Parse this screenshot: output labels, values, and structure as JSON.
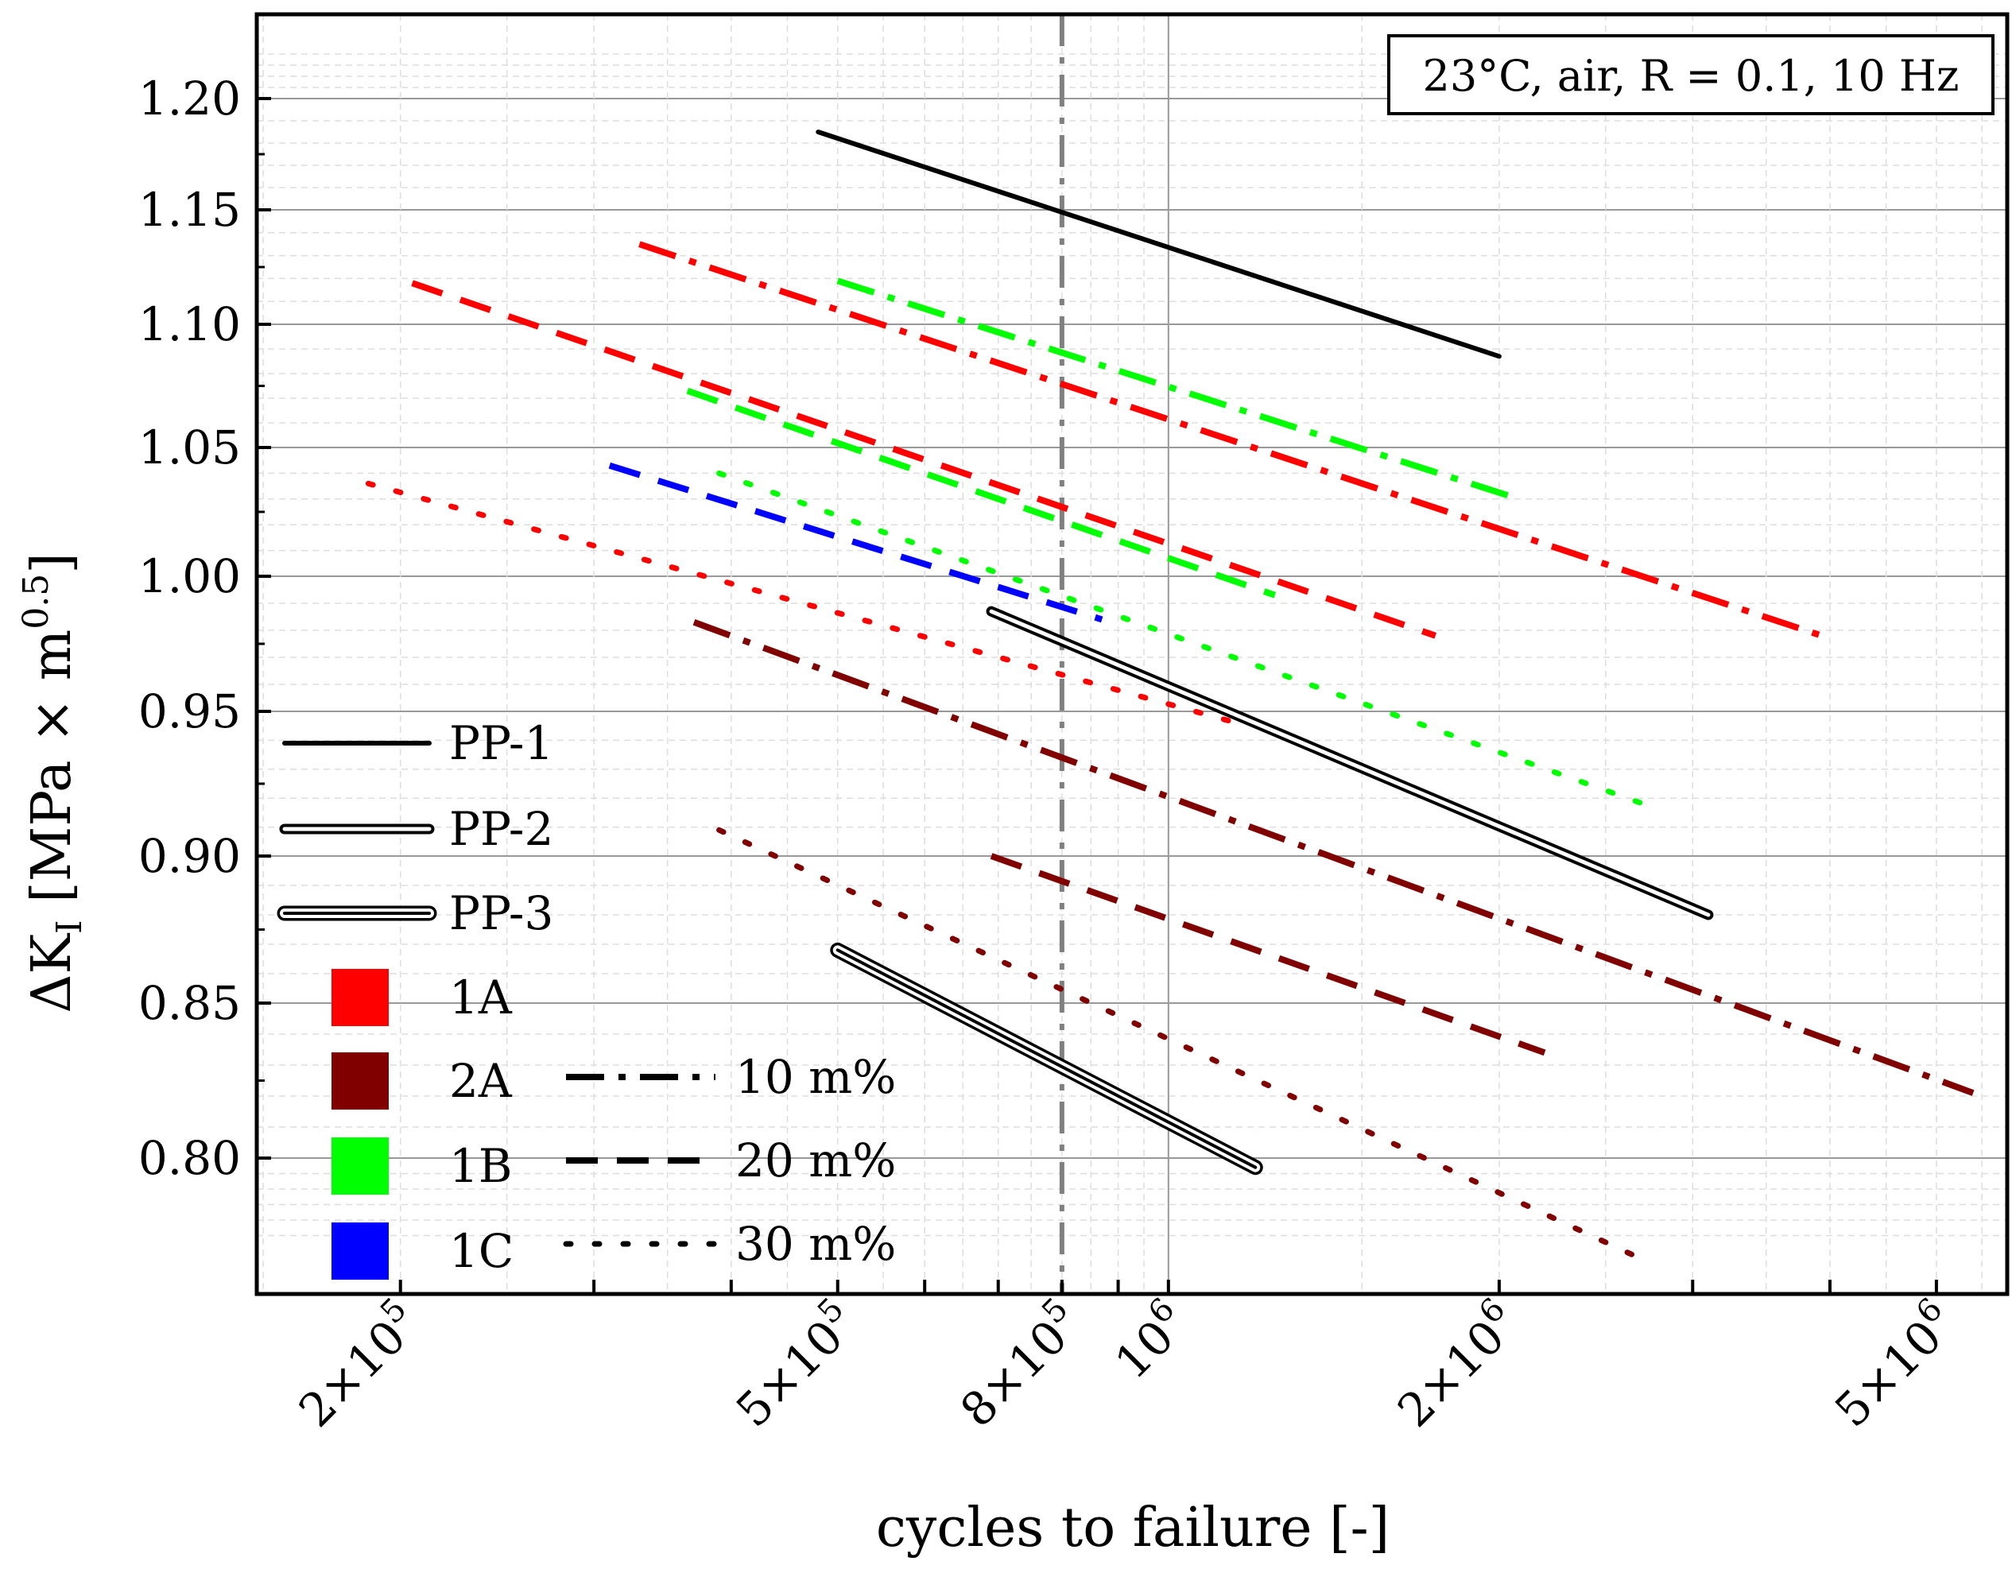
{
  "chart_data": {
    "type": "line",
    "title": "",
    "annotation": "23°C, air, R = 0.1, 10 Hz",
    "xlabel": "cycles to failure [-]",
    "ylabel": {
      "prefix": "ΔK",
      "sub": "I",
      "mid": " [MPa × m",
      "sup": "0.5",
      "suffix": "]"
    },
    "xscale": "log",
    "xlim": [
      148000,
      5800000
    ],
    "ylim": [
      0.772,
      1.225
    ],
    "yscale": "custom-piecewise",
    "y_tick_values": [
      0.8,
      0.85,
      0.9,
      0.95,
      1.0,
      1.05,
      1.1,
      1.15,
      1.2
    ],
    "y_tick_labels": [
      "0.80",
      "0.85",
      "0.90",
      "0.95",
      "1.00",
      "1.05",
      "1.10",
      "1.15",
      "1.20"
    ],
    "x_tick_labels": [
      {
        "value": 200000,
        "mant": "2×10",
        "exp": "5"
      },
      {
        "value": 500000,
        "mant": "5×10",
        "exp": "5"
      },
      {
        "value": 800000,
        "mant": "8×10",
        "exp": "5"
      },
      {
        "value": 1000000,
        "mant": "10",
        "exp": "6"
      },
      {
        "value": 2000000,
        "mant": "2×10",
        "exp": "6"
      },
      {
        "value": 5000000,
        "mant": "5×10",
        "exp": "6"
      }
    ],
    "grid": true,
    "reference_line": {
      "x": 800000,
      "style": "dash-dot",
      "color": "#808080"
    },
    "colors": {
      "1A": "#ff0000",
      "2A": "#800000",
      "1B": "#00ff00",
      "1C": "#0000ff",
      "PP": "#000000"
    },
    "series": [
      {
        "name": "PP-1",
        "material": "PP",
        "content": "",
        "style": "pp1",
        "x": [
          480000,
          2000000
        ],
        "y": [
          1.185,
          1.087
        ]
      },
      {
        "name": "PP-2",
        "material": "PP",
        "content": "",
        "style": "pp2",
        "x": [
          690000,
          3100000
        ],
        "y": [
          0.987,
          0.88
        ]
      },
      {
        "name": "PP-3",
        "material": "PP",
        "content": "",
        "style": "pp3",
        "x": [
          500000,
          1200000
        ],
        "y": [
          0.868,
          0.797
        ]
      },
      {
        "name": "1A 10 m%",
        "material": "1A",
        "content": "10 m%",
        "style": "dashdot",
        "x": [
          330000,
          4000000
        ],
        "y": [
          1.135,
          0.977
        ]
      },
      {
        "name": "1A 20 m%",
        "material": "1A",
        "content": "20 m%",
        "style": "dash",
        "x": [
          205000,
          1750000
        ],
        "y": [
          1.118,
          0.978
        ]
      },
      {
        "name": "1A 30 m%",
        "material": "1A",
        "content": "30 m%",
        "style": "dot",
        "x": [
          187000,
          1180000
        ],
        "y": [
          1.036,
          0.945
        ]
      },
      {
        "name": "2A 10 m%",
        "material": "2A",
        "content": "10 m%",
        "style": "dashdot",
        "x": [
          370000,
          5400000
        ],
        "y": [
          0.983,
          0.821
        ]
      },
      {
        "name": "2A 20 m%",
        "material": "2A",
        "content": "20 m%",
        "style": "dash",
        "x": [
          690000,
          2200000
        ],
        "y": [
          0.9,
          0.834
        ]
      },
      {
        "name": "2A 30 m%",
        "material": "2A",
        "content": "30 m%",
        "style": "dot",
        "x": [
          390000,
          2750000
        ],
        "y": [
          0.909,
          0.766
        ]
      },
      {
        "name": "1B 10 m%",
        "material": "1B",
        "content": "10 m%",
        "style": "dashdot",
        "x": [
          500000,
          2050000
        ],
        "y": [
          1.119,
          1.031
        ]
      },
      {
        "name": "1B 20 m%",
        "material": "1B",
        "content": "20 m%",
        "style": "dash",
        "x": [
          365000,
          1250000
        ],
        "y": [
          1.073,
          0.993
        ]
      },
      {
        "name": "1B 30 m%",
        "material": "1B",
        "content": "30 m%",
        "style": "dot",
        "x": [
          390000,
          2800000
        ],
        "y": [
          1.04,
          0.916
        ]
      },
      {
        "name": "1C 20 m%",
        "material": "1C",
        "content": "20 m%",
        "style": "dash",
        "x": [
          310000,
          870000
        ],
        "y": [
          1.043,
          0.984
        ]
      }
    ],
    "legend": {
      "placement": "left-middle",
      "line_entries": [
        {
          "label": "PP-1",
          "style": "pp1"
        },
        {
          "label": "PP-2",
          "style": "pp2"
        },
        {
          "label": "PP-3",
          "style": "pp3"
        }
      ],
      "color_entries": [
        {
          "label": "1A",
          "color": "#ff0000"
        },
        {
          "label": "2A",
          "color": "#800000"
        },
        {
          "label": "1B",
          "color": "#00ff00"
        },
        {
          "label": "1C",
          "color": "#0000ff"
        }
      ],
      "style_entries": [
        {
          "label": "10 m%",
          "style": "dashdot"
        },
        {
          "label": "20 m%",
          "style": "dash"
        },
        {
          "label": "30 m%",
          "style": "dot"
        }
      ]
    }
  }
}
